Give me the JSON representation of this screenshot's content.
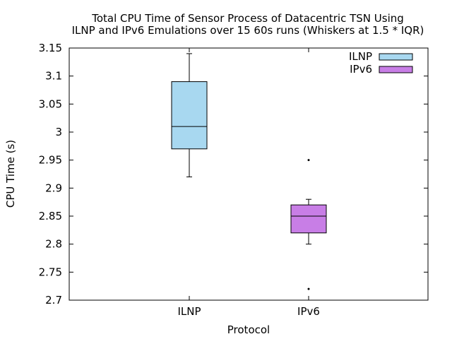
{
  "chart_data": {
    "type": "box",
    "title": "Total CPU Time of Sensor Process of Datacentric TSN Using\nILNP and IPv6 Emulations over 15 60s runs (Whiskers at 1.5 * IQR)",
    "title_lines": [
      "Total CPU Time of Sensor Process of Datacentric TSN Using",
      "ILNP and IPv6 Emulations over 15 60s runs (Whiskers at 1.5 * IQR)"
    ],
    "xlabel": "Protocol",
    "ylabel": "CPU Time (s)",
    "ylim": [
      2.7,
      3.15
    ],
    "yticks": [
      2.7,
      2.75,
      2.8,
      2.85,
      2.9,
      2.95,
      3.0,
      3.05,
      3.1,
      3.15
    ],
    "ytick_labels": [
      "2.7",
      "2.75",
      "2.8",
      "2.85",
      "2.9",
      "2.95",
      "3",
      "3.05",
      "3.1",
      "3.15"
    ],
    "categories": [
      "ILNP",
      "IPv6"
    ],
    "grid": false,
    "legend_position": "top-right",
    "series": [
      {
        "name": "ILNP",
        "color": "#a8d8f0",
        "whisker_low": 2.92,
        "q1": 2.97,
        "median": 3.01,
        "q3": 3.09,
        "whisker_high": 3.14,
        "outliers": []
      },
      {
        "name": "IPv6",
        "color": "#c87ee6",
        "whisker_low": 2.8,
        "q1": 2.82,
        "median": 2.85,
        "q3": 2.87,
        "whisker_high": 2.88,
        "outliers": [
          2.95,
          2.72
        ]
      }
    ]
  }
}
